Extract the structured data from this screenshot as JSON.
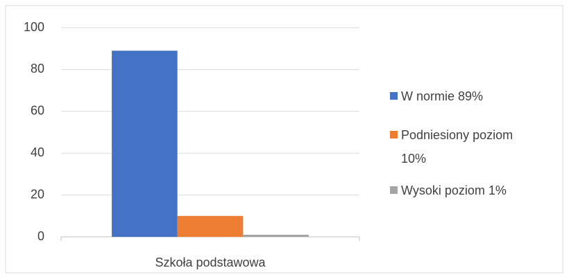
{
  "chart_data": {
    "type": "bar",
    "categories": [
      "Szkoła podstawowa"
    ],
    "series": [
      {
        "name": "W normie 89%",
        "color": "#4472c4",
        "values": [
          89
        ]
      },
      {
        "name": "Podniesiony poziom 10%",
        "color": "#ed7d31",
        "values": [
          10
        ]
      },
      {
        "name": "Wysoki poziom 1%",
        "color": "#a5a5a5",
        "values": [
          1
        ]
      }
    ],
    "ylim": [
      0,
      100
    ],
    "yticks": [
      0,
      20,
      40,
      60,
      80,
      100
    ],
    "grid": true,
    "legend": "right"
  }
}
